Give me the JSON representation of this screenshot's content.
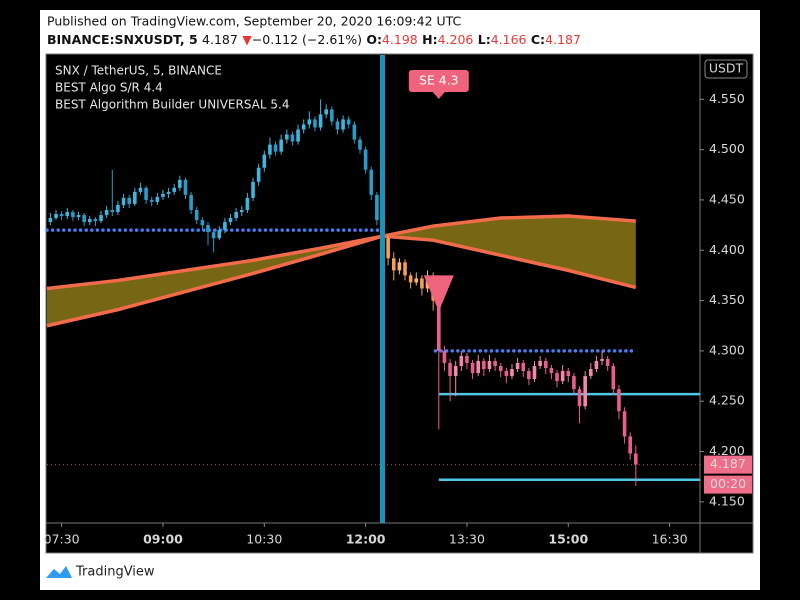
{
  "header": {
    "published": "Published on TradingView.com, September 20, 2020 16:09:42 UTC",
    "symbol": "BINANCE:SNXUSDT, 5",
    "last": "4.187",
    "arrow": "▼",
    "change": "−0.112 (−2.61%)",
    "o_label": "O:",
    "o": "4.198",
    "h_label": "H:",
    "h": "4.206",
    "l_label": "L:",
    "l": "4.166",
    "c_label": "C:",
    "c": "4.187"
  },
  "chart_data": {
    "type": "candlestick",
    "legend": [
      "SNX / TetherUS, 5, BINANCE",
      "BEST Algo S/R 4.4",
      "BEST Algorithm Builder UNIVERSAL 5.4"
    ],
    "currency": "USDT",
    "xlim": [
      437,
      1017
    ],
    "ylim": [
      4.129,
      4.594
    ],
    "xticks": [
      {
        "value": 450,
        "label": "07:30"
      },
      {
        "value": 540,
        "label": "09:00",
        "bold": true
      },
      {
        "value": 630,
        "label": "10:30"
      },
      {
        "value": 720,
        "label": "12:00",
        "bold": true
      },
      {
        "value": 810,
        "label": "13:30"
      },
      {
        "value": 900,
        "label": "15:00",
        "bold": true
      },
      {
        "value": 990,
        "label": "16:30"
      }
    ],
    "yticks": [
      {
        "value": 4.15,
        "label": "4.150"
      },
      {
        "value": 4.2,
        "label": "4.200"
      },
      {
        "value": 4.25,
        "label": "4.250"
      },
      {
        "value": 4.3,
        "label": "4.300"
      },
      {
        "value": 4.35,
        "label": "4.350"
      },
      {
        "value": 4.4,
        "label": "4.400"
      },
      {
        "value": 4.45,
        "label": "4.450"
      },
      {
        "value": 4.5,
        "label": "4.500"
      },
      {
        "value": 4.55,
        "label": "4.550"
      }
    ],
    "x": [
      440,
      445,
      450,
      455,
      460,
      465,
      470,
      475,
      480,
      485,
      490,
      495,
      500,
      505,
      510,
      515,
      520,
      525,
      530,
      535,
      540,
      545,
      550,
      555,
      560,
      565,
      570,
      575,
      580,
      585,
      590,
      595,
      600,
      605,
      610,
      615,
      620,
      625,
      630,
      635,
      640,
      645,
      650,
      655,
      660,
      665,
      670,
      675,
      680,
      685,
      690,
      695,
      700,
      705,
      710,
      715,
      720,
      725,
      730,
      735,
      740,
      745,
      750,
      755,
      760,
      765,
      770,
      775,
      780,
      785,
      790,
      795,
      800,
      805,
      810,
      815,
      820,
      825,
      830,
      835,
      840,
      845,
      850,
      855,
      860,
      865,
      870,
      875,
      880,
      885,
      890,
      895,
      900,
      905,
      910,
      915,
      920,
      925,
      930,
      935,
      940,
      945,
      950,
      955,
      960
    ],
    "candles": [
      [
        4.428,
        4.437,
        4.425,
        4.432
      ],
      [
        4.432,
        4.44,
        4.43,
        4.436
      ],
      [
        4.436,
        4.439,
        4.43,
        4.434
      ],
      [
        4.434,
        4.442,
        4.431,
        4.438
      ],
      [
        4.438,
        4.44,
        4.429,
        4.433
      ],
      [
        4.433,
        4.438,
        4.43,
        4.435
      ],
      [
        4.435,
        4.437,
        4.424,
        4.428
      ],
      [
        4.428,
        4.434,
        4.425,
        4.431
      ],
      [
        4.431,
        4.433,
        4.424,
        4.429
      ],
      [
        4.429,
        4.439,
        4.427,
        4.435
      ],
      [
        4.435,
        4.444,
        4.432,
        4.44
      ],
      [
        4.44,
        4.48,
        4.434,
        4.438
      ],
      [
        4.438,
        4.449,
        4.435,
        4.445
      ],
      [
        4.445,
        4.456,
        4.442,
        4.452
      ],
      [
        4.452,
        4.455,
        4.442,
        4.446
      ],
      [
        4.446,
        4.462,
        4.444,
        4.458
      ],
      [
        4.458,
        4.467,
        4.455,
        4.462
      ],
      [
        4.462,
        4.464,
        4.446,
        4.45
      ],
      [
        4.45,
        4.453,
        4.444,
        4.448
      ],
      [
        4.448,
        4.457,
        4.445,
        4.453
      ],
      [
        4.453,
        4.46,
        4.45,
        4.456
      ],
      [
        4.456,
        4.462,
        4.452,
        4.458
      ],
      [
        4.458,
        4.466,
        4.455,
        4.462
      ],
      [
        4.462,
        4.474,
        4.459,
        4.47
      ],
      [
        4.47,
        4.472,
        4.451,
        4.455
      ],
      [
        4.455,
        4.458,
        4.436,
        4.44
      ],
      [
        4.44,
        4.443,
        4.426,
        4.43
      ],
      [
        4.43,
        4.433,
        4.421,
        4.425
      ],
      [
        4.425,
        4.428,
        4.405,
        4.418
      ],
      [
        4.418,
        4.421,
        4.398,
        4.412
      ],
      [
        4.412,
        4.424,
        4.41,
        4.42
      ],
      [
        4.42,
        4.432,
        4.417,
        4.428
      ],
      [
        4.428,
        4.436,
        4.425,
        4.432
      ],
      [
        4.432,
        4.442,
        4.429,
        4.438
      ],
      [
        4.438,
        4.444,
        4.434,
        4.44
      ],
      [
        4.44,
        4.457,
        4.437,
        4.452
      ],
      [
        4.452,
        4.472,
        4.449,
        4.468
      ],
      [
        4.468,
        4.486,
        4.464,
        4.482
      ],
      [
        4.482,
        4.499,
        4.478,
        4.495
      ],
      [
        4.495,
        4.512,
        4.491,
        4.505
      ],
      [
        4.505,
        4.508,
        4.494,
        4.498
      ],
      [
        4.498,
        4.515,
        4.495,
        4.51
      ],
      [
        4.51,
        4.52,
        4.506,
        4.515
      ],
      [
        4.515,
        4.518,
        4.504,
        4.508
      ],
      [
        4.508,
        4.525,
        4.505,
        4.52
      ],
      [
        4.52,
        4.53,
        4.516,
        4.525
      ],
      [
        4.525,
        4.538,
        4.521,
        4.53
      ],
      [
        4.53,
        4.533,
        4.518,
        4.522
      ],
      [
        4.522,
        4.55,
        4.519,
        4.535
      ],
      [
        4.535,
        4.545,
        4.531,
        4.54
      ],
      [
        4.54,
        4.543,
        4.524,
        4.528
      ],
      [
        4.528,
        4.531,
        4.515,
        4.52
      ],
      [
        4.52,
        4.534,
        4.517,
        4.53
      ],
      [
        4.53,
        4.533,
        4.521,
        4.525
      ],
      [
        4.525,
        4.528,
        4.506,
        4.51
      ],
      [
        4.51,
        4.513,
        4.496,
        4.5
      ],
      [
        4.5,
        4.503,
        4.476,
        4.48
      ],
      [
        4.48,
        4.483,
        4.45,
        4.455
      ],
      [
        4.455,
        4.458,
        4.425,
        4.43
      ],
      [
        4.43,
        4.434,
        4.405,
        4.412
      ],
      [
        4.412,
        4.415,
        4.385,
        4.392
      ],
      [
        4.392,
        4.398,
        4.37,
        4.38
      ],
      [
        4.38,
        4.392,
        4.376,
        4.388
      ],
      [
        4.388,
        4.391,
        4.37,
        4.375
      ],
      [
        4.375,
        4.378,
        4.362,
        4.368
      ],
      [
        4.368,
        4.378,
        4.365,
        4.372
      ],
      [
        4.372,
        4.375,
        4.355,
        4.362
      ],
      [
        4.362,
        4.38,
        4.358,
        4.375
      ],
      [
        4.375,
        4.378,
        4.34,
        4.35
      ],
      [
        4.35,
        4.354,
        4.222,
        4.3
      ],
      [
        4.3,
        4.305,
        4.28,
        4.288
      ],
      [
        4.288,
        4.292,
        4.25,
        4.275
      ],
      [
        4.275,
        4.29,
        4.255,
        4.285
      ],
      [
        4.285,
        4.3,
        4.28,
        4.295
      ],
      [
        4.295,
        4.298,
        4.282,
        4.288
      ],
      [
        4.288,
        4.291,
        4.272,
        4.278
      ],
      [
        4.278,
        4.296,
        4.275,
        4.29
      ],
      [
        4.29,
        4.293,
        4.275,
        4.282
      ],
      [
        4.282,
        4.296,
        4.279,
        4.29
      ],
      [
        4.29,
        4.293,
        4.28,
        4.285
      ],
      [
        4.285,
        4.288,
        4.274,
        4.28
      ],
      [
        4.28,
        4.283,
        4.268,
        4.275
      ],
      [
        4.275,
        4.287,
        4.272,
        4.282
      ],
      [
        4.282,
        4.293,
        4.279,
        4.288
      ],
      [
        4.288,
        4.291,
        4.274,
        4.28
      ],
      [
        4.28,
        4.283,
        4.266,
        4.272
      ],
      [
        4.272,
        4.29,
        4.269,
        4.285
      ],
      [
        4.285,
        4.295,
        4.282,
        4.29
      ],
      [
        4.29,
        4.293,
        4.277,
        4.283
      ],
      [
        4.283,
        4.286,
        4.272,
        4.278
      ],
      [
        4.278,
        4.281,
        4.264,
        4.27
      ],
      [
        4.27,
        4.286,
        4.267,
        4.28
      ],
      [
        4.28,
        4.283,
        4.269,
        4.275
      ],
      [
        4.275,
        4.278,
        4.256,
        4.262
      ],
      [
        4.262,
        4.265,
        4.228,
        4.245
      ],
      [
        4.245,
        4.28,
        4.242,
        4.275
      ],
      [
        4.275,
        4.288,
        4.272,
        4.282
      ],
      [
        4.282,
        4.295,
        4.279,
        4.29
      ],
      [
        4.29,
        4.3,
        4.286,
        4.292
      ],
      [
        4.292,
        4.295,
        4.28,
        4.285
      ],
      [
        4.285,
        4.288,
        4.256,
        4.262
      ],
      [
        4.262,
        4.266,
        4.232,
        4.24
      ],
      [
        4.24,
        4.244,
        4.208,
        4.215
      ],
      [
        4.215,
        4.219,
        4.192,
        4.198
      ],
      [
        4.198,
        4.206,
        4.166,
        4.187
      ]
    ],
    "regimes": [
      {
        "start": 437,
        "up_color": "#3fb6de",
        "down_color": "#2a9cc8"
      },
      {
        "start": 738,
        "up_color": "#f8b86e",
        "down_color": "#f5a04e"
      },
      {
        "start": 783,
        "up_color": "#f08aa6",
        "down_color": "#e8608a"
      }
    ],
    "curves": [
      {
        "color": "#f26b4b",
        "x": [
          437,
          500,
          560,
          620,
          680,
          735,
          780,
          840,
          900,
          960
        ],
        "values": [
          4.325,
          4.341,
          4.359,
          4.377,
          4.396,
          4.414,
          4.41,
          4.395,
          4.38,
          4.363
        ]
      },
      {
        "color": "#f26b4b",
        "x": [
          437,
          500,
          560,
          620,
          680,
          735,
          780,
          840,
          900,
          960
        ],
        "values": [
          4.362,
          4.37,
          4.38,
          4.39,
          4.402,
          4.414,
          4.424,
          4.432,
          4.434,
          4.429
        ]
      }
    ],
    "cloud_color": "#7d6c14",
    "levels": [
      {
        "value": 4.42,
        "from": 437,
        "to": 735,
        "style": "dotted",
        "color": "#4a7ef0"
      },
      {
        "value": 4.3,
        "from": 782,
        "to": 960,
        "style": "dotted",
        "color": "#4a7ef0"
      },
      {
        "value": 4.257,
        "from": 785,
        "to": 1017,
        "style": "solid",
        "color": "#4fc8e6"
      },
      {
        "value": 4.172,
        "from": 785,
        "to": 1017,
        "style": "solid",
        "color": "#4fc8e6"
      }
    ],
    "crosshair_x": 735,
    "signals": [
      {
        "label": "SE 4.3",
        "x": 785,
        "price": 4.375,
        "color": "#f0637c"
      }
    ],
    "last_price": 4.187,
    "countdown": "00:20",
    "last_color": "#ef6e8c"
  },
  "footer": {
    "brand": "TradingView"
  }
}
